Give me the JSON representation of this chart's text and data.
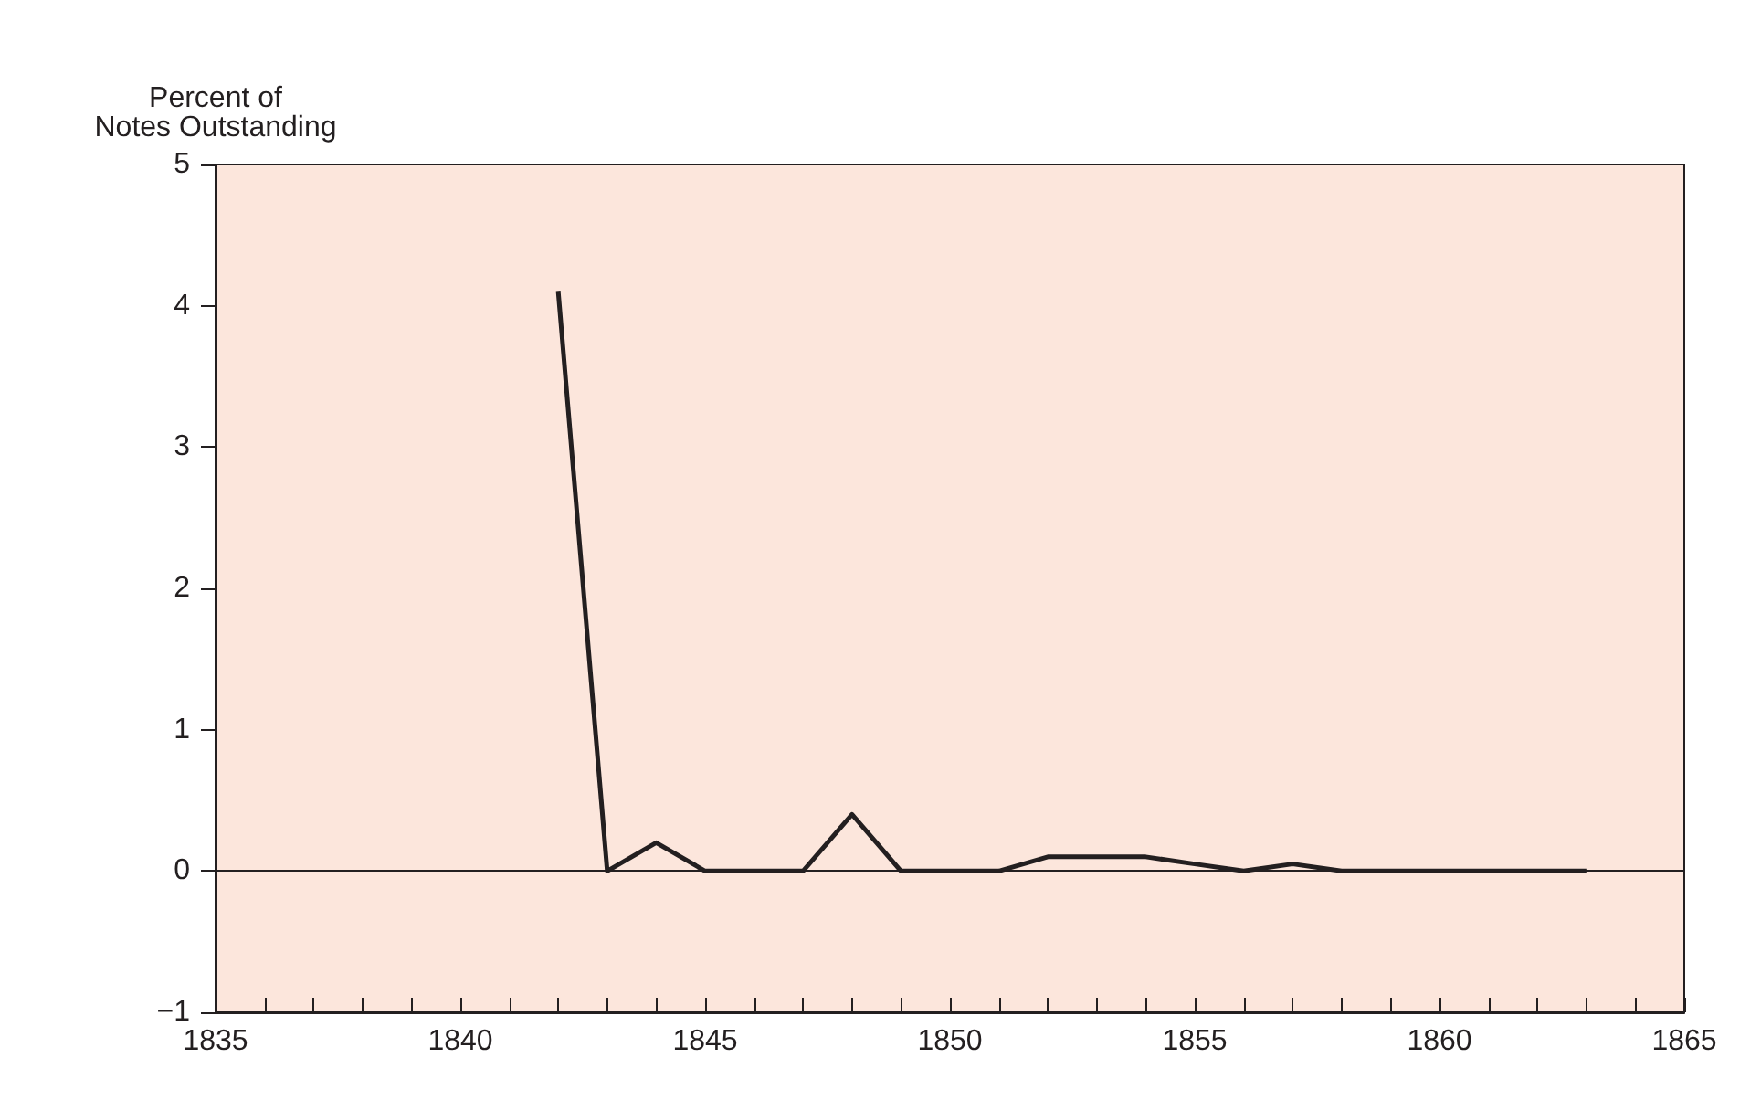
{
  "chart_data": {
    "type": "line",
    "ylabel": "Percent of\nNotes Outstanding",
    "x": [
      1842,
      1843,
      1844,
      1845,
      1846,
      1847,
      1848,
      1849,
      1850,
      1851,
      1852,
      1853,
      1854,
      1855,
      1856,
      1857,
      1858,
      1859,
      1860,
      1861,
      1862,
      1863
    ],
    "series": [
      {
        "color": "#231f20",
        "values": [
          4.1,
          0,
          0.2,
          0,
          0,
          0,
          0.4,
          0,
          0,
          0,
          0.1,
          0.1,
          0.1,
          0.05,
          0,
          0.05,
          0,
          0,
          0,
          0,
          0,
          0
        ]
      }
    ],
    "xlim": [
      1835,
      1865
    ],
    "xticks": [
      1835,
      {
        "value": 1836,
        "label": null
      },
      {
        "value": 1837,
        "label": null
      },
      {
        "value": 1838,
        "label": null
      },
      {
        "value": 1839,
        "label": null
      },
      1840,
      {
        "value": 1841,
        "label": null
      },
      {
        "value": 1842,
        "label": null
      },
      {
        "value": 1843,
        "label": null
      },
      {
        "value": 1844,
        "label": null
      },
      1845,
      {
        "value": 1846,
        "label": null
      },
      {
        "value": 1847,
        "label": null
      },
      {
        "value": 1848,
        "label": null
      },
      {
        "value": 1849,
        "label": null
      },
      1850,
      {
        "value": 1851,
        "label": null
      },
      {
        "value": 1852,
        "label": null
      },
      {
        "value": 1853,
        "label": null
      },
      {
        "value": 1854,
        "label": null
      },
      1855,
      {
        "value": 1856,
        "label": null
      },
      {
        "value": 1857,
        "label": null
      },
      {
        "value": 1858,
        "label": null
      },
      {
        "value": 1859,
        "label": null
      },
      1860,
      {
        "value": 1861,
        "label": null
      },
      {
        "value": 1862,
        "label": null
      },
      {
        "value": 1863,
        "label": null
      },
      {
        "value": 1864,
        "label": null
      },
      1865
    ],
    "ylim": [
      -1,
      5
    ],
    "yticks": [
      {
        "value": -1,
        "label": "−1"
      },
      0,
      1,
      2,
      3,
      4,
      5
    ],
    "ref_lines": [
      {
        "axis": "y",
        "value": 0,
        "label": null,
        "color": "#231f20"
      }
    ],
    "grid": false,
    "marker": "none",
    "line_style": "solid"
  }
}
